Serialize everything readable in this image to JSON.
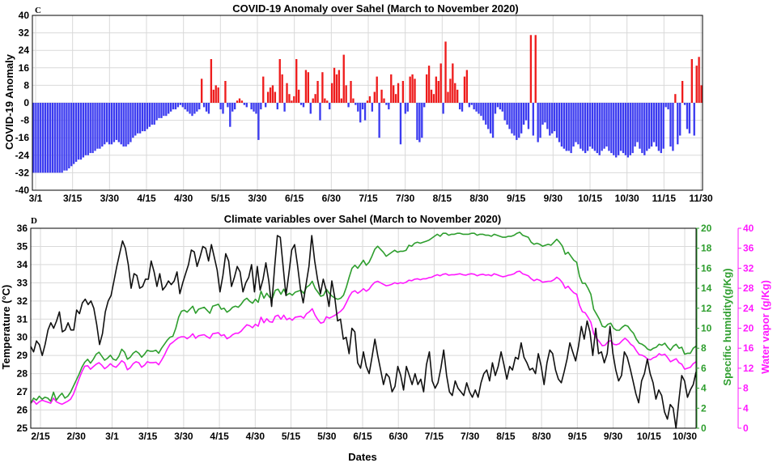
{
  "chart_data": [
    {
      "panel_letter": "C",
      "type": "bar",
      "title": "COVID-19 Anomaly over Sahel (March to November 2020)",
      "xlabel": "",
      "ylabel": "COVID-19 Anomaly",
      "ylim": [
        -40,
        40
      ],
      "yticks": [
        40,
        32,
        24,
        16,
        8,
        0,
        -8,
        -16,
        -24,
        -32,
        -40
      ],
      "xticklabels": [
        "3/1",
        "3/15",
        "3/30",
        "4/15",
        "4/30",
        "5/15",
        "3/30",
        "6/15",
        "6/30",
        "7/15",
        "7/30",
        "8/15",
        "8/30",
        "9/15",
        "9/30",
        "10/15",
        "10/30",
        "11/15",
        "11/30"
      ],
      "grid": true,
      "positive_color": "#ee1c1c",
      "negative_color": "#3b3bf0",
      "values": [
        -32,
        -32,
        -32,
        -32,
        -32,
        -32,
        -32,
        -32,
        -32,
        -32,
        -32,
        -32,
        -32,
        -31,
        -31,
        -30,
        -29,
        -28,
        -27,
        -26,
        -26,
        -25,
        -24,
        -24,
        -23,
        -23,
        -22,
        -21,
        -21,
        -20,
        -19,
        -18,
        -19,
        -19,
        -18,
        -17,
        -18,
        -19,
        -20,
        -20,
        -19,
        -18,
        -16,
        -15,
        -14,
        -14,
        -13,
        -13,
        -12,
        -11,
        -10,
        -10,
        -8,
        -7,
        -7,
        -6,
        -6,
        -5,
        -4,
        -3,
        -3,
        -2,
        -1,
        -2,
        -3,
        -4,
        -5,
        -6,
        -5,
        -4,
        -3,
        11,
        -2,
        -4,
        -5,
        20,
        6,
        8,
        7,
        -3,
        -5,
        10,
        -2,
        -11,
        -4,
        -3,
        1,
        2,
        1,
        -1,
        -2,
        0,
        -3,
        -4,
        -5,
        -17,
        -3,
        12,
        -2,
        5,
        7,
        8,
        5,
        -3,
        20,
        13,
        -4,
        9,
        4,
        1,
        3,
        20,
        6,
        -1,
        -2,
        15,
        14,
        -5,
        2,
        4,
        10,
        -8,
        14,
        2,
        1,
        -3,
        9,
        16,
        13,
        15,
        2,
        22,
        8,
        -2,
        10,
        2,
        -1,
        -4,
        -9,
        -3,
        -8,
        1,
        3,
        -4,
        5,
        12,
        -16,
        6,
        2,
        -1,
        -3,
        13,
        8,
        4,
        9,
        -19,
        10,
        -5,
        -4,
        12,
        13,
        11,
        -17,
        -18,
        -16,
        -2,
        13,
        17,
        6,
        4,
        12,
        10,
        18,
        -5,
        28,
        5,
        11,
        18,
        9,
        6,
        -3,
        -4,
        12,
        15,
        -2,
        -1,
        -3,
        -4,
        -5,
        -6,
        -8,
        -10,
        -12,
        -14,
        -16,
        -5,
        -2,
        -3,
        -4,
        -8,
        -10,
        -12,
        -14,
        -15,
        -17,
        -16,
        -14,
        -10,
        -8,
        -12,
        31,
        -15,
        31,
        -18,
        -16,
        -10,
        -9,
        -12,
        -15,
        -14,
        -13,
        -16,
        -18,
        -20,
        -21,
        -22,
        -22,
        -23,
        -20,
        -18,
        -19,
        -21,
        -22,
        -23,
        -22,
        -20,
        -21,
        -22,
        -23,
        -24,
        -22,
        -21,
        -20,
        -22,
        -23,
        -24,
        -25,
        -24,
        -22,
        -23,
        -24,
        -25,
        -24,
        -23,
        -20,
        -18,
        -21,
        -23,
        -24,
        -22,
        -21,
        -20,
        -18,
        -20,
        -22,
        -23,
        -21,
        -2,
        -3,
        -20,
        -22,
        4,
        -19,
        -15,
        10,
        -1,
        -12,
        -14,
        20,
        -15,
        17,
        21,
        8
      ]
    },
    {
      "panel_letter": "D",
      "type": "line",
      "title": "Climate variables over Sahel (March to November 2020)",
      "xlabel": "Dates",
      "ylabel": "Temperature (°C)",
      "ylabel2": "Specific humidity(g/Kg)",
      "ylabel3": "Water vapor (g/Kg)",
      "ylim": [
        25,
        36
      ],
      "ylim2": [
        0,
        20
      ],
      "ylim3": [
        0,
        40
      ],
      "yticks": [
        36,
        35,
        34,
        33,
        32,
        31,
        30,
        29,
        28,
        27,
        26,
        25
      ],
      "yticks2": [
        20,
        18,
        16,
        14,
        12,
        10,
        8,
        6,
        4,
        2,
        0
      ],
      "yticks3": [
        40,
        36,
        32,
        28,
        24,
        20,
        16,
        12,
        8,
        4,
        0
      ],
      "xticklabels": [
        "2/15",
        "2/30",
        "3/1",
        "3/15",
        "3/30",
        "4/15",
        "4/30",
        "5/15",
        "5/30",
        "6/15",
        "6/30",
        "7/15",
        "7/30",
        "8/15",
        "8/30",
        "9/15",
        "9/30",
        "10/15",
        "10/30"
      ],
      "grid": true,
      "series": [
        {
          "axis": "left",
          "color": "#111111",
          "values": [
            29.5,
            29.2,
            29.8,
            29.6,
            29.0,
            29.6,
            30.4,
            30.8,
            30.5,
            30.9,
            31.4,
            30.3,
            30.4,
            30.8,
            30.4,
            30.4,
            31.5,
            31.3,
            31.9,
            32.1,
            31.8,
            32.0,
            31.6,
            30.7,
            29.6,
            30.2,
            31.4,
            32.0,
            32.3,
            33.1,
            33.9,
            34.6,
            35.3,
            34.9,
            34.0,
            32.7,
            33.5,
            33.4,
            32.7,
            32.8,
            33.2,
            33.2,
            34.2,
            33.6,
            32.8,
            33.5,
            32.6,
            32.8,
            33.1,
            32.9,
            33.1,
            33.6,
            32.4,
            33.0,
            33.5,
            34.0,
            34.8,
            34.7,
            33.9,
            34.4,
            35.0,
            34.9,
            34.2,
            35.1,
            34.4,
            33.7,
            32.5,
            33.4,
            34.6,
            34.2,
            32.8,
            33.3,
            33.9,
            33.6,
            32.5,
            33.0,
            33.3,
            34.0,
            32.5,
            33.9,
            32.6,
            33.2,
            34.1,
            33.1,
            31.7,
            33.8,
            35.6,
            35.5,
            33.9,
            32.3,
            33.5,
            34.8,
            35.1,
            34.0,
            32.7,
            31.9,
            32.9,
            33.9,
            35.6,
            34.2,
            33.2,
            32.4,
            33.2,
            32.6,
            31.7,
            33.1,
            32.2,
            30.9,
            31.0,
            29.9,
            30.0,
            29.1,
            30.5,
            30.3,
            28.6,
            28.3,
            29.2,
            28.4,
            28.0,
            28.9,
            29.9,
            29.0,
            28.2,
            27.4,
            28.0,
            27.8,
            27.0,
            27.3,
            28.4,
            27.9,
            27.1,
            28.4,
            27.9,
            27.4,
            28.0,
            27.4,
            27.7,
            27.0,
            28.5,
            29.2,
            27.6,
            27.2,
            27.5,
            28.3,
            29.3,
            27.9,
            27.0,
            26.8,
            27.6,
            27.2,
            27.0,
            26.8,
            27.5,
            27.0,
            26.7,
            27.1,
            26.7,
            27.5,
            28.0,
            28.2,
            27.6,
            28.6,
            27.9,
            28.4,
            29.2,
            28.5,
            27.7,
            28.4,
            28.2,
            28.9,
            28.8,
            29.7,
            28.9,
            28.6,
            28.2,
            28.3,
            28.0,
            29.1,
            28.4,
            27.4,
            28.6,
            29.3,
            29.1,
            28.2,
            27.7,
            27.5,
            28.1,
            28.8,
            29.7,
            29.2,
            28.7,
            29.5,
            30.6,
            29.9,
            30.9,
            30.3,
            29.0,
            30.5,
            29.1,
            29.2,
            28.6,
            29.1,
            30.6,
            29.1,
            28.2,
            27.6,
            27.9,
            29.2,
            28.9,
            28.3,
            27.6,
            26.9,
            26.4,
            27.6,
            28.0,
            28.8,
            28.0,
            27.5,
            26.6,
            27.1,
            26.8,
            25.9,
            25.5,
            26.3,
            26.1,
            25.0,
            26.5,
            27.9,
            27.6,
            26.7,
            27.1,
            27.4,
            28.1
          ]
        },
        {
          "axis": "right1",
          "color": "#2e9e2e",
          "values": [
            2.5,
            3.0,
            2.8,
            3.2,
            2.9,
            3.1,
            3.0,
            2.7,
            3.6,
            2.8,
            3.2,
            3.5,
            3.0,
            3.2,
            3.6,
            4.2,
            4.8,
            5.4,
            6.1,
            6.6,
            6.9,
            6.5,
            6.9,
            7.4,
            7.6,
            7.2,
            6.8,
            7.0,
            7.3,
            6.9,
            6.8,
            7.2,
            7.9,
            7.6,
            6.9,
            7.1,
            7.5,
            7.7,
            7.5,
            7.1,
            7.4,
            7.8,
            7.7,
            7.7,
            7.8,
            7.5,
            8.0,
            8.4,
            8.8,
            9.1,
            9.2,
            10.0,
            11.1,
            11.7,
            11.8,
            11.6,
            11.9,
            12.2,
            11.5,
            11.9,
            12.0,
            12.1,
            11.8,
            11.5,
            12.2,
            12.3,
            12.4,
            11.9,
            12.0,
            11.6,
            11.8,
            12.1,
            12.2,
            12.1,
            12.4,
            12.8,
            13.0,
            12.7,
            12.5,
            12.9,
            12.6,
            13.7,
            13.0,
            13.5,
            13.1,
            13.0,
            13.8,
            13.9,
            13.4,
            13.9,
            13.3,
            13.5,
            13.3,
            13.6,
            13.7,
            13.8,
            13.5,
            14.1,
            14.3,
            14.7,
            14.0,
            13.6,
            13.2,
            13.3,
            13.9,
            13.5,
            13.2,
            13.0,
            12.9,
            13.0,
            13.3,
            14.1,
            15.1,
            16.0,
            16.3,
            16.0,
            16.4,
            16.8,
            16.3,
            16.6,
            17.2,
            17.9,
            18.2,
            17.9,
            17.6,
            17.2,
            17.4,
            17.6,
            17.8,
            17.6,
            17.7,
            17.7,
            17.8,
            18.3,
            18.2,
            18.5,
            18.6,
            18.5,
            18.6,
            18.7,
            18.8,
            19.0,
            19.2,
            19.4,
            19.2,
            19.5,
            19.5,
            19.3,
            19.4,
            19.4,
            19.5,
            19.5,
            19.4,
            19.4,
            19.4,
            19.5,
            19.5,
            19.3,
            19.4,
            19.4,
            19.3,
            19.3,
            19.2,
            19.4,
            19.3,
            19.2,
            19.1,
            19.1,
            19.2,
            19.2,
            19.3,
            19.5,
            19.6,
            19.3,
            19.2,
            19.1,
            18.6,
            18.4,
            18.5,
            18.4,
            18.2,
            18.3,
            18.4,
            18.3,
            18.6,
            18.9,
            18.6,
            18.2,
            17.4,
            17.6,
            17.2,
            16.8,
            16.6,
            15.2,
            14.5,
            14.5,
            14.0,
            13.4,
            11.9,
            11.4,
            10.9,
            10.2,
            10.1,
            10.4,
            10.5,
            10.0,
            9.8,
            9.8,
            10.1,
            10.3,
            10.2,
            9.8,
            9.5,
            8.9,
            8.5,
            8.4,
            8.2,
            7.9,
            7.8,
            8.0,
            8.1,
            8.4,
            8.3,
            8.5,
            8.1,
            7.8,
            8.2,
            8.4,
            8.0,
            8.1,
            7.4,
            7.5,
            7.5,
            8.0,
            8.2
          ]
        },
        {
          "axis": "right2",
          "color": "#ff19ff",
          "values": [
            5.0,
            5.5,
            4.8,
            5.3,
            5.6,
            5.4,
            5.2,
            5.0,
            6.0,
            5.3,
            5.0,
            4.8,
            5.1,
            5.4,
            5.8,
            6.8,
            8.3,
            9.9,
            11.3,
            12.4,
            12.5,
            11.8,
            12.3,
            12.8,
            13.1,
            12.6,
            11.9,
            12.3,
            12.9,
            12.4,
            12.2,
            12.8,
            13.5,
            13.1,
            11.7,
            12.1,
            12.9,
            13.3,
            13.1,
            12.2,
            12.6,
            13.3,
            13.1,
            13.1,
            13.2,
            12.7,
            13.6,
            14.6,
            15.8,
            16.8,
            17.2,
            17.7,
            18.1,
            18.3,
            18.3,
            17.9,
            18.3,
            18.9,
            18.0,
            18.5,
            18.6,
            18.7,
            18.3,
            18.0,
            18.9,
            19.0,
            19.1,
            18.5,
            18.7,
            17.9,
            18.2,
            18.7,
            19.0,
            19.0,
            19.4,
            20.1,
            20.7,
            20.5,
            20.1,
            20.8,
            20.4,
            22.2,
            21.1,
            21.9,
            21.3,
            21.2,
            22.4,
            22.6,
            21.8,
            22.6,
            21.7,
            22.0,
            21.6,
            22.2,
            22.3,
            22.4,
            22.0,
            22.9,
            23.3,
            23.9,
            22.6,
            21.7,
            21.0,
            21.2,
            22.3,
            22.0,
            22.3,
            22.6,
            23.0,
            23.4,
            24.0,
            25.1,
            26.3,
            27.2,
            27.5,
            27.0,
            27.4,
            27.9,
            27.4,
            27.8,
            28.6,
            29.2,
            29.4,
            29.1,
            28.8,
            28.5,
            28.6,
            28.8,
            29.1,
            28.9,
            29.1,
            29.0,
            29.2,
            29.6,
            29.5,
            29.8,
            29.9,
            29.7,
            29.9,
            29.9,
            30.1,
            30.2,
            30.5,
            30.7,
            30.5,
            30.8,
            30.9,
            30.6,
            30.7,
            30.7,
            30.8,
            30.9,
            30.7,
            30.6,
            30.8,
            30.9,
            30.8,
            30.5,
            30.7,
            30.8,
            30.6,
            30.7,
            30.5,
            30.9,
            30.7,
            30.5,
            30.3,
            30.4,
            30.6,
            30.7,
            30.9,
            31.3,
            31.4,
            30.9,
            30.7,
            30.5,
            29.9,
            29.5,
            29.8,
            29.6,
            29.2,
            29.3,
            29.4,
            29.4,
            29.7,
            30.2,
            29.8,
            29.1,
            28.0,
            28.4,
            27.7,
            27.1,
            26.8,
            24.6,
            23.3,
            23.1,
            22.2,
            21.2,
            18.9,
            18.0,
            17.3,
            16.5,
            16.6,
            17.3,
            17.5,
            16.8,
            16.7,
            16.9,
            17.5,
            18.0,
            17.5,
            16.8,
            16.4,
            15.5,
            14.7,
            14.6,
            14.3,
            13.8,
            13.7,
            14.1,
            14.3,
            14.9,
            14.6,
            14.8,
            14.1,
            13.3,
            13.6,
            13.9,
            13.1,
            12.8,
            11.8,
            12.0,
            12.2,
            12.9,
            13.3
          ]
        }
      ]
    }
  ]
}
